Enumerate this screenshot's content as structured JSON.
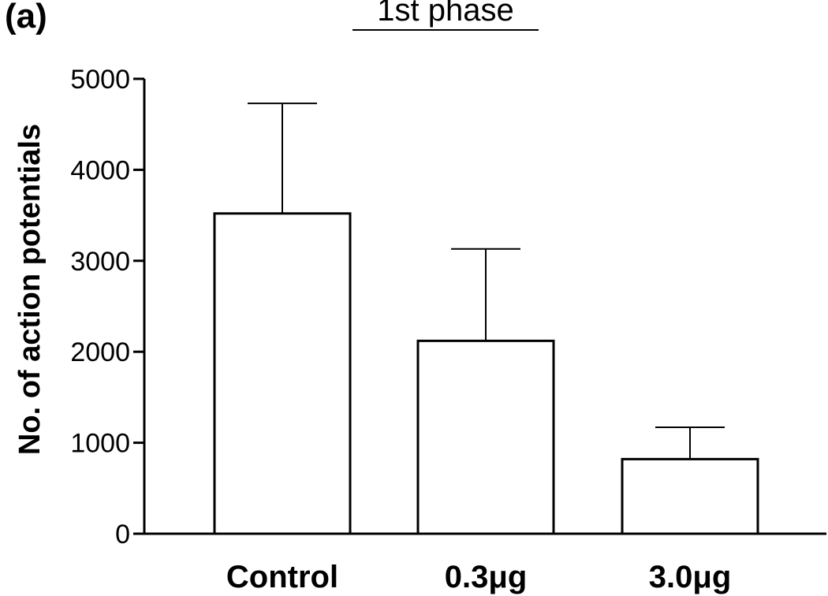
{
  "panel_label": "(a)",
  "chart_data": {
    "type": "bar",
    "title": "1st phase",
    "xlabel": "",
    "ylabel": "No. of action potentials",
    "categories": [
      "Control",
      "0.3μg",
      "3.0μg"
    ],
    "values": [
      3520,
      2120,
      820
    ],
    "error_upper": [
      4730,
      3130,
      1170
    ],
    "ylim": [
      0,
      5000
    ],
    "yticks": [
      0,
      1000,
      2000,
      3000,
      4000,
      5000
    ],
    "ytick_labels": [
      "0",
      "1000",
      "2000",
      "3000",
      "4000",
      "5000"
    ],
    "grid": false,
    "legend": "none"
  }
}
